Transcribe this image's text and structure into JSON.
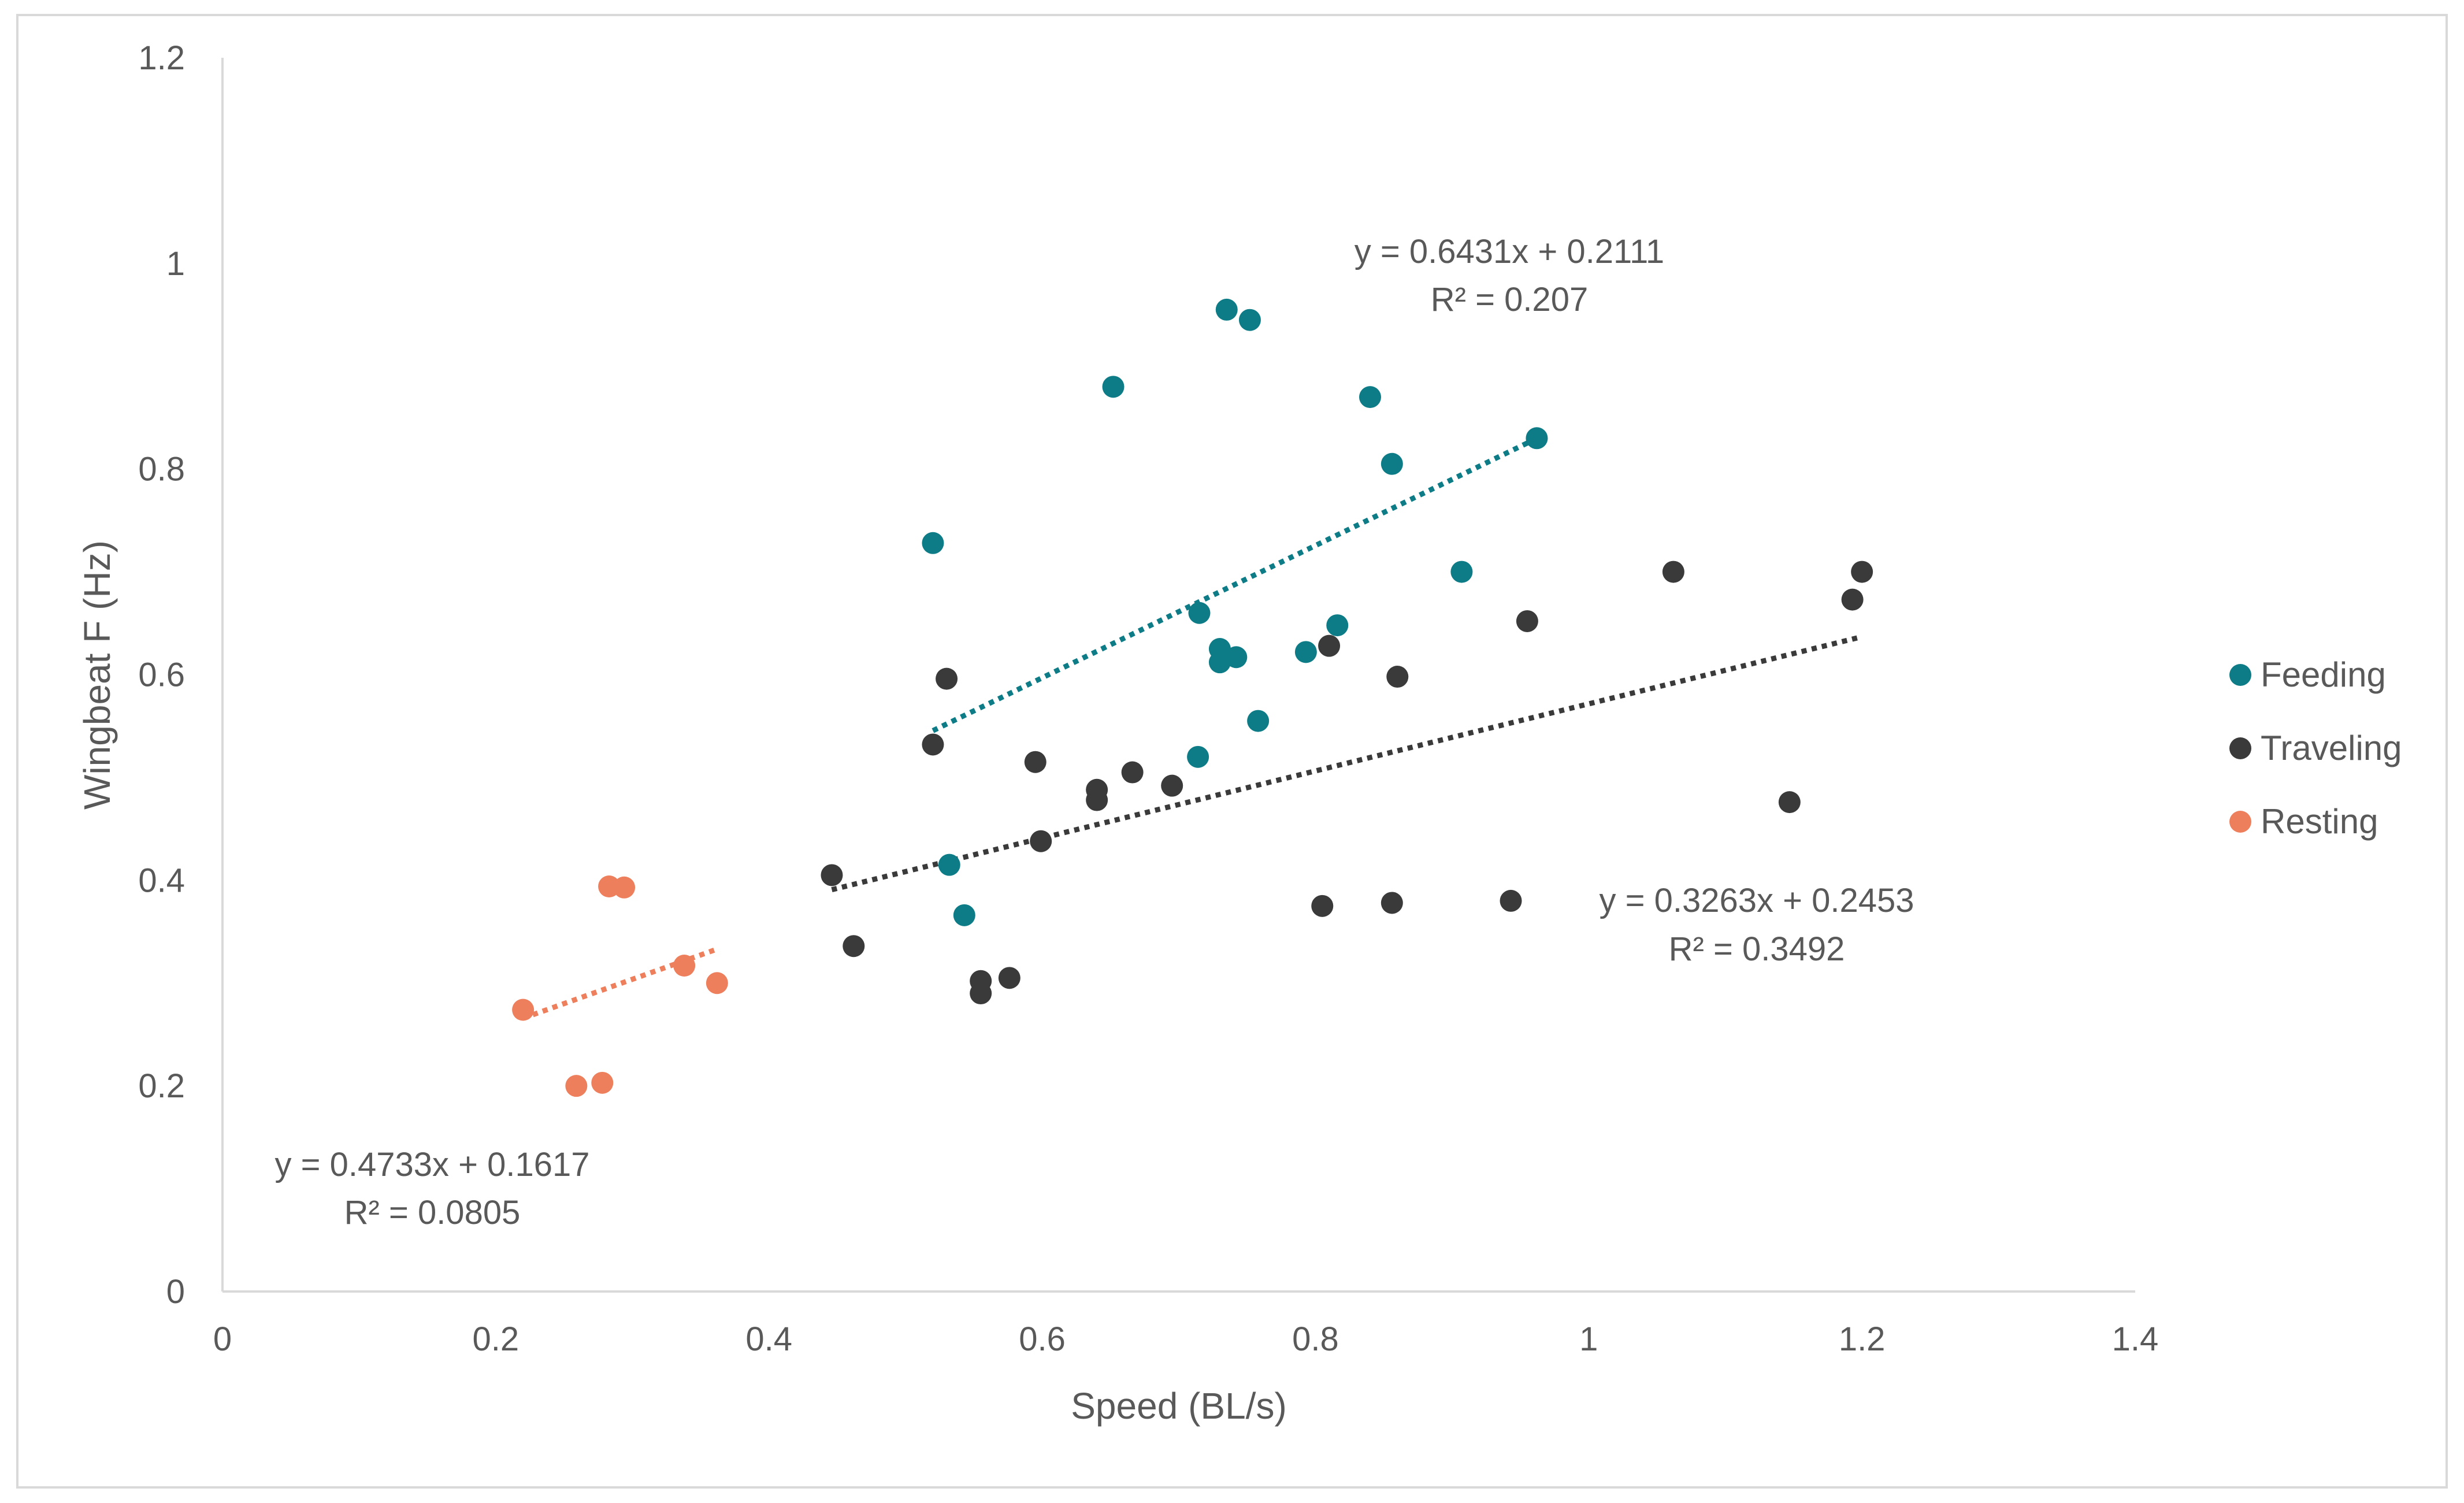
{
  "chart_data": {
    "type": "scatter",
    "title": "",
    "xlabel": "Speed (BL/s)",
    "ylabel": "Wingbeat F (Hz)",
    "xlim": [
      0,
      1.4
    ],
    "ylim": [
      0,
      1.2
    ],
    "x_ticks": [
      "0",
      "0.2",
      "0.4",
      "0.6",
      "0.8",
      "1",
      "1.2",
      "1.4"
    ],
    "y_ticks": [
      "0",
      "0.2",
      "0.4",
      "0.6",
      "0.8",
      "1",
      "1.2"
    ],
    "grid": false,
    "legend_position": "right",
    "series": [
      {
        "name": "Feeding",
        "color": "#0e7c86",
        "points": [
          [
            0.52,
            0.728
          ],
          [
            0.532,
            0.415
          ],
          [
            0.543,
            0.366
          ],
          [
            0.652,
            0.88
          ],
          [
            0.715,
            0.66
          ],
          [
            0.714,
            0.52
          ],
          [
            0.73,
            0.625
          ],
          [
            0.73,
            0.612
          ],
          [
            0.742,
            0.617
          ],
          [
            0.735,
            0.955
          ],
          [
            0.752,
            0.945
          ],
          [
            0.758,
            0.555
          ],
          [
            0.793,
            0.622
          ],
          [
            0.816,
            0.648
          ],
          [
            0.84,
            0.87
          ],
          [
            0.856,
            0.805
          ],
          [
            0.907,
            0.7
          ],
          [
            0.962,
            0.83
          ]
        ],
        "trendline": {
          "equation": "y = 0.6431x + 0.2111",
          "r2": "R² = 0.207",
          "slope": 0.6431,
          "intercept": 0.2111,
          "x_range": [
            0.52,
            0.962
          ]
        }
      },
      {
        "name": "Traveling",
        "color": "#3a3a3a",
        "points": [
          [
            0.446,
            0.405
          ],
          [
            0.462,
            0.336
          ],
          [
            0.52,
            0.532
          ],
          [
            0.53,
            0.596
          ],
          [
            0.555,
            0.302
          ],
          [
            0.555,
            0.29
          ],
          [
            0.576,
            0.305
          ],
          [
            0.595,
            0.515
          ],
          [
            0.599,
            0.438
          ],
          [
            0.64,
            0.478
          ],
          [
            0.64,
            0.488
          ],
          [
            0.666,
            0.505
          ],
          [
            0.695,
            0.492
          ],
          [
            0.805,
            0.375
          ],
          [
            0.81,
            0.628
          ],
          [
            0.856,
            0.378
          ],
          [
            0.86,
            0.598
          ],
          [
            0.943,
            0.38
          ],
          [
            0.955,
            0.652
          ],
          [
            1.062,
            0.7
          ],
          [
            1.147,
            0.476
          ],
          [
            1.193,
            0.673
          ],
          [
            1.2,
            0.7
          ]
        ],
        "trendline": {
          "equation": "y = 0.3263x + 0.2453",
          "r2": "R² = 0.3492",
          "slope": 0.3263,
          "intercept": 0.2453,
          "x_range": [
            0.446,
            1.2
          ]
        }
      },
      {
        "name": "Resting",
        "color": "#ee7f5d",
        "points": [
          [
            0.22,
            0.274
          ],
          [
            0.259,
            0.2
          ],
          [
            0.278,
            0.203
          ],
          [
            0.283,
            0.394
          ],
          [
            0.294,
            0.393
          ],
          [
            0.338,
            0.317
          ],
          [
            0.362,
            0.3
          ]
        ],
        "trendline": {
          "equation": "y = 0.4733x + 0.1617",
          "r2": "R² = 0.0805",
          "slope": 0.4733,
          "intercept": 0.1617,
          "x_range": [
            0.22,
            0.362
          ]
        }
      }
    ]
  }
}
